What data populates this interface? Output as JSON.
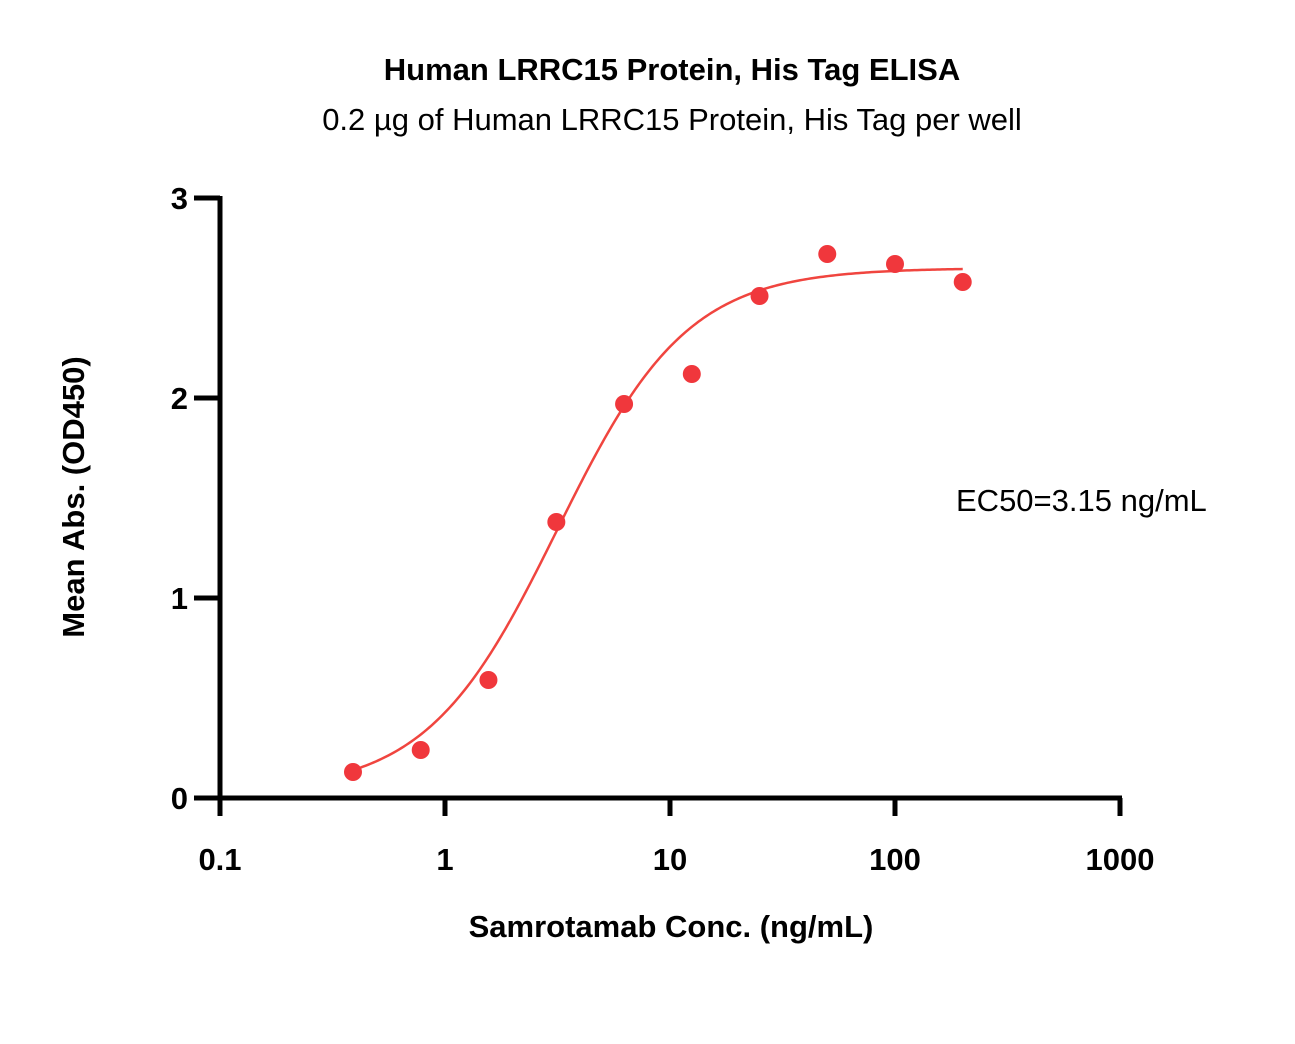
{
  "chart_data": {
    "type": "scatter",
    "title": "Human LRRC15 Protein, His Tag ELISA",
    "subtitle": "0.2 µg of Human LRRC15 Protein, His Tag per well",
    "xlabel": "Samrotamab Conc. (ng/mL)",
    "ylabel": "Mean Abs. (OD450)",
    "x_scale": "log",
    "xlim": [
      0.1,
      1000
    ],
    "ylim": [
      0,
      3
    ],
    "x_ticks": [
      0.1,
      1,
      10,
      100,
      1000
    ],
    "x_tick_labels": [
      "0.1",
      "1",
      "10",
      "100",
      "1000"
    ],
    "y_ticks": [
      0,
      1,
      2,
      3
    ],
    "y_tick_labels": [
      "0",
      "1",
      "2",
      "3"
    ],
    "grid": false,
    "annotation": "EC50=3.15 ng/mL",
    "series": [
      {
        "color": "#f0373c",
        "x": [
          0.39,
          0.78,
          1.56,
          3.125,
          6.25,
          12.5,
          25,
          50,
          100,
          200
        ],
        "y": [
          0.13,
          0.24,
          0.59,
          1.38,
          1.97,
          2.12,
          2.51,
          2.72,
          2.67,
          2.58
        ]
      }
    ],
    "fit": {
      "color": "#f0453f",
      "model": "4PL",
      "bottom": 0.03,
      "top": 2.65,
      "ec50": 3.15,
      "hill": 1.5,
      "x_range": [
        0.39,
        200
      ]
    }
  }
}
